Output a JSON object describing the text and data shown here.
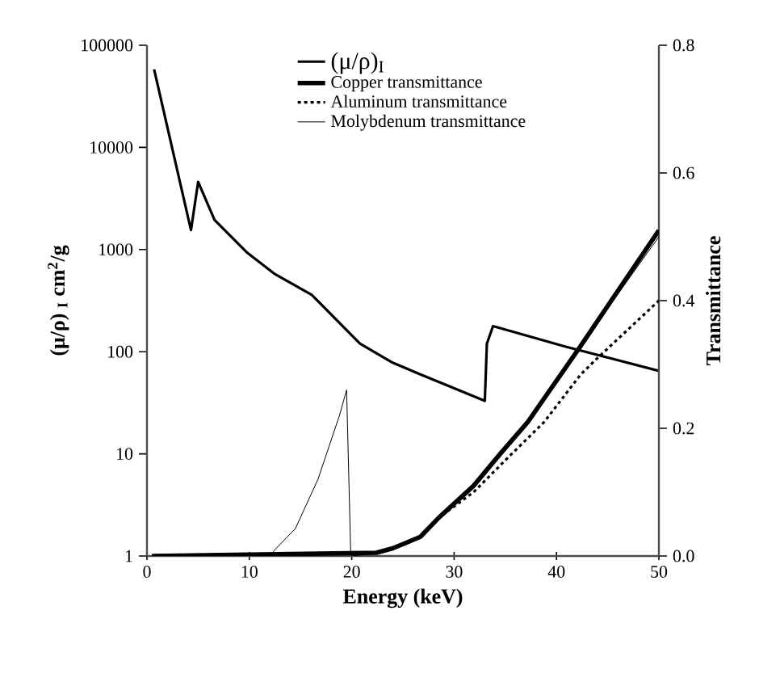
{
  "chart_data": {
    "type": "line",
    "xlabel": "Energy (keV)",
    "ylabel": "(μ/ρ) $_{I}$ cm$^{2}$/g",
    "y2label": "Transmittance",
    "xlim": [
      0,
      50
    ],
    "xticks": [
      0,
      10,
      20,
      30,
      40,
      50
    ],
    "ylim": [
      1,
      100000
    ],
    "yticks": [
      1,
      10,
      100,
      1000,
      10000,
      100000
    ],
    "log": "y",
    "y2lim": [
      0,
      0.8
    ],
    "y2ticks": [
      {
        "value": 0,
        "label": "0.0"
      },
      0.2,
      0.4,
      0.6,
      0.8
    ],
    "legend": "top",
    "grid": false,
    "series": [
      {
        "name": "(μ/ρ)$_{I}$",
        "color": "#000000",
        "x": [
          0.7,
          4.3,
          5.0,
          6.6,
          9.8,
          12.5,
          16.1,
          20.8,
          24.0,
          26.7,
          33.0,
          33.2,
          33.8,
          40.9,
          50.0
        ],
        "values": [
          58000,
          1550,
          4600,
          1950,
          930,
          575,
          360,
          120,
          78,
          60,
          33,
          120,
          178,
          112,
          65
        ]
      },
      {
        "name": "Copper transmittance",
        "color": "#000000",
        "axis": "y2",
        "x": [
          0.5,
          22.4,
          24.0,
          26.7,
          28.5,
          31.9,
          34.5,
          37.2,
          42.4,
          50.0
        ],
        "values": [
          0,
          0.005,
          0.012,
          0.03,
          0.06,
          0.11,
          0.16,
          0.21,
          0.33,
          0.51
        ]
      },
      {
        "name": "Aluminum transmittance",
        "color": "#000000",
        "axis": "y2",
        "line_style": "dotted",
        "x": [
          0.5,
          22.4,
          24.0,
          26.7,
          28.5,
          31.9,
          35.0,
          38.8,
          42.4,
          44.0,
          50.0
        ],
        "values": [
          0,
          0.005,
          0.012,
          0.03,
          0.06,
          0.1,
          0.15,
          0.21,
          0.285,
          0.31,
          0.4
        ]
      },
      {
        "name": "Molybdenum transmittance",
        "color": "#000000",
        "axis": "y2",
        "x": [
          0.5,
          12.0,
          12.5,
          14.5,
          16.7,
          18.8,
          19.5,
          19.9,
          20.0,
          23.0,
          26.7,
          31.9,
          37.2,
          42.4,
          50.0
        ],
        "values": [
          0,
          0,
          0.01,
          0.043,
          0.12,
          0.22,
          0.26,
          0.005,
          0,
          0.005,
          0.03,
          0.11,
          0.21,
          0.33,
          0.5
        ]
      }
    ]
  }
}
